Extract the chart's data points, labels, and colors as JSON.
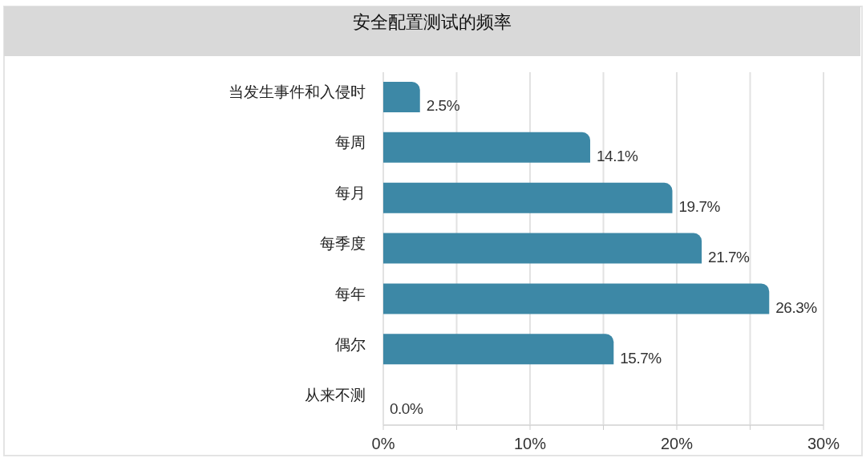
{
  "chart_data": {
    "type": "bar",
    "orientation": "horizontal",
    "title": "安全配置测试的频率",
    "categories": [
      "当发生事件和入侵时",
      "每周",
      "每月",
      "每季度",
      "每年",
      "偶尔",
      "从来不测"
    ],
    "values": [
      2.5,
      14.1,
      19.7,
      21.7,
      26.3,
      15.7,
      0.0
    ],
    "value_labels": [
      "2.5%",
      "14.1%",
      "19.7%",
      "21.7%",
      "26.3%",
      "15.7%",
      "0.0%"
    ],
    "color": "#3d88a6",
    "xlim": [
      0,
      30
    ],
    "xticks": [
      {
        "value": 0,
        "label": "0%"
      },
      {
        "value": 5,
        "label": null
      },
      {
        "value": 10,
        "label": "10%"
      },
      {
        "value": 15,
        "label": null
      },
      {
        "value": 20,
        "label": "20%"
      },
      {
        "value": 25,
        "label": null
      },
      {
        "value": 30,
        "label": "30%"
      }
    ],
    "grid": "x"
  }
}
